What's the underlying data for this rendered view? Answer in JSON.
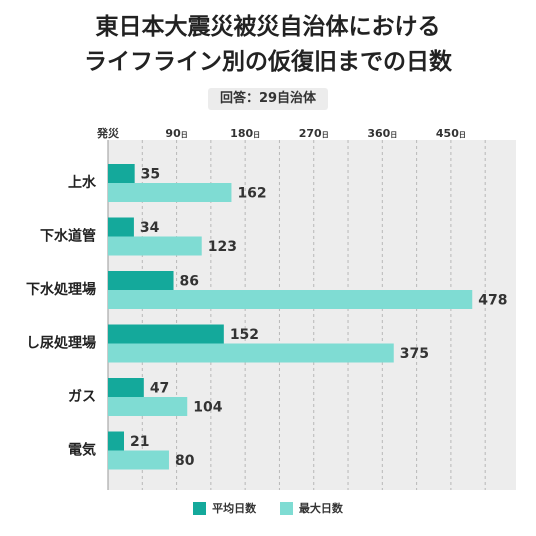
{
  "title_line1": "東日本大震災被災自治体における",
  "title_line2": "ライフライン別の仮復旧までの日数",
  "badge": "回答：29自治体",
  "chart_data": {
    "type": "bar",
    "orientation": "horizontal",
    "categories": [
      "上水",
      "下水道管",
      "下水処理場",
      "し尿処理場",
      "ガス",
      "電気"
    ],
    "series": [
      {
        "name": "平均日数",
        "values": [
          35,
          34,
          86,
          152,
          47,
          21
        ],
        "color": "#14a99b"
      },
      {
        "name": "最大日数",
        "values": [
          162,
          123,
          478,
          375,
          104,
          80
        ],
        "color": "#7fdcd3"
      }
    ],
    "xlim": [
      0,
      540
    ],
    "ticks": [
      {
        "value": 0,
        "label": "発災",
        "unit": ""
      },
      {
        "value": 90,
        "label": "90",
        "unit": "日"
      },
      {
        "value": 180,
        "label": "180",
        "unit": "日"
      },
      {
        "value": 270,
        "label": "270",
        "unit": "日"
      },
      {
        "value": 360,
        "label": "360",
        "unit": "日"
      },
      {
        "value": 450,
        "label": "450",
        "unit": "日"
      }
    ],
    "grid": true,
    "legend_position": "bottom"
  }
}
